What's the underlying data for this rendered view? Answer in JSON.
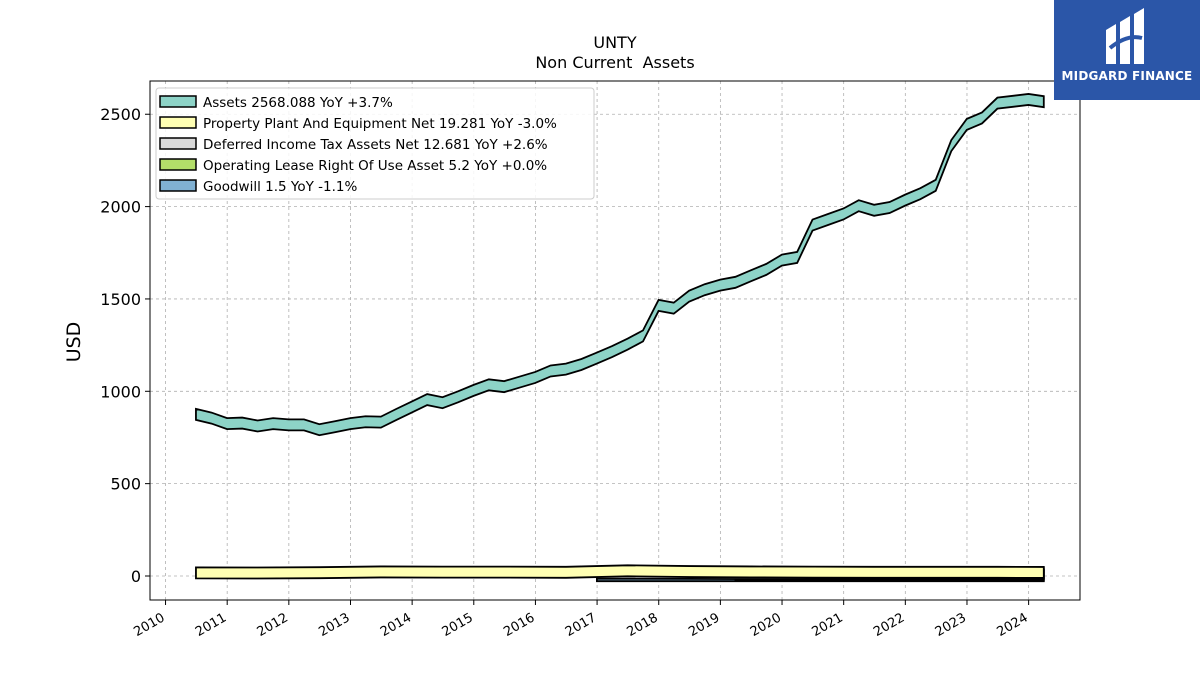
{
  "chart_data": {
    "type": "area",
    "title": "UNTY",
    "subtitle": "Non Current  Assets",
    "ylabel": "USD",
    "xlabel": "",
    "ylim": [
      -130,
      2680
    ],
    "xlim": [
      "2009-10-01",
      "2024-11-01"
    ],
    "yticks": [
      0,
      500,
      1000,
      1500,
      2000,
      2500
    ],
    "xticks": [
      "2010",
      "2011",
      "2012",
      "2013",
      "2014",
      "2015",
      "2016",
      "2017",
      "2018",
      "2019",
      "2020",
      "2021",
      "2022",
      "2023",
      "2024"
    ],
    "grid": true,
    "legend_position": "top-left",
    "series": [
      {
        "name": "Assets",
        "legend": "Assets  2568.088 YoY +3.7%",
        "color": "#8dd3c7",
        "x": [
          "2010-06-30",
          "2010-09-30",
          "2010-12-31",
          "2011-03-31",
          "2011-06-30",
          "2011-09-30",
          "2011-12-31",
          "2012-03-31",
          "2012-06-30",
          "2012-09-30",
          "2012-12-31",
          "2013-03-31",
          "2013-06-30",
          "2013-09-30",
          "2013-12-31",
          "2014-03-31",
          "2014-06-30",
          "2014-09-30",
          "2014-12-31",
          "2015-03-31",
          "2015-06-30",
          "2015-09-30",
          "2015-12-31",
          "2016-03-31",
          "2016-06-30",
          "2016-09-30",
          "2016-12-31",
          "2017-03-31",
          "2017-06-30",
          "2017-09-30",
          "2017-12-31",
          "2018-03-31",
          "2018-06-30",
          "2018-09-30",
          "2018-12-31",
          "2019-03-31",
          "2019-06-30",
          "2019-09-30",
          "2019-12-31",
          "2020-03-31",
          "2020-06-30",
          "2020-09-30",
          "2020-12-31",
          "2021-03-31",
          "2021-06-30",
          "2021-09-30",
          "2021-12-31",
          "2022-03-31",
          "2022-06-30",
          "2022-09-30",
          "2022-12-31",
          "2023-03-31",
          "2023-06-30",
          "2023-09-30",
          "2023-12-31",
          "2024-03-31"
        ],
        "values": [
          875,
          855,
          825,
          828,
          812,
          825,
          818,
          818,
          792,
          808,
          825,
          835,
          833,
          875,
          915,
          955,
          938,
          970,
          1005,
          1035,
          1025,
          1050,
          1075,
          1110,
          1120,
          1145,
          1180,
          1215,
          1255,
          1300,
          1465,
          1450,
          1515,
          1550,
          1575,
          1590,
          1625,
          1660,
          1710,
          1725,
          1900,
          1930,
          1960,
          2005,
          1980,
          1995,
          2035,
          2070,
          2115,
          2330,
          2445,
          2480,
          2560,
          2570,
          2580,
          2568
        ]
      },
      {
        "name": "Property Plant And Equipment Net",
        "legend": "Property Plant And Equipment Net  19.281 YoY -3.0%",
        "color": "#ffffb3",
        "x": [
          "2010-06-30",
          "2011-06-30",
          "2012-06-30",
          "2013-06-30",
          "2014-06-30",
          "2015-06-30",
          "2016-06-30",
          "2017-06-30",
          "2018-06-30",
          "2019-06-30",
          "2020-06-30",
          "2021-06-30",
          "2022-06-30",
          "2023-06-30",
          "2024-03-31"
        ],
        "values": [
          17,
          16,
          18,
          22,
          21,
          21,
          20,
          28,
          24,
          22,
          21,
          20,
          20,
          20,
          19.281
        ]
      },
      {
        "name": "Deferred Income Tax Assets Net",
        "legend": "Deferred Income Tax Assets Net  12.681 YoY +2.6%",
        "color": "#d9d9d9",
        "x": [
          "2016-12-31",
          "2017-06-30",
          "2018-06-30",
          "2019-06-30",
          "2020-06-30",
          "2021-06-30",
          "2022-06-30",
          "2023-06-30",
          "2024-03-31"
        ],
        "values": [
          15,
          15,
          14,
          13,
          12,
          12,
          12.5,
          12.4,
          12.681
        ]
      },
      {
        "name": "Operating Lease Right Of Use Asset",
        "legend": "Operating Lease Right Of Use Asset  5.2 YoY +0.0%",
        "color": "#b3de69",
        "x": [
          "2019-03-31",
          "2020-06-30",
          "2021-06-30",
          "2022-06-30",
          "2023-06-30",
          "2024-03-31"
        ],
        "values": [
          6,
          5.8,
          5.5,
          5.3,
          5.2,
          5.2
        ]
      },
      {
        "name": "Goodwill",
        "legend": "Goodwill  1.5 YoY -1.1%",
        "color": "#80b1d3",
        "x": [
          "2016-12-31",
          "2024-03-31"
        ],
        "values": [
          1.5,
          1.5
        ]
      }
    ]
  },
  "logo": {
    "brand": "MIDGARD FINANCE"
  }
}
